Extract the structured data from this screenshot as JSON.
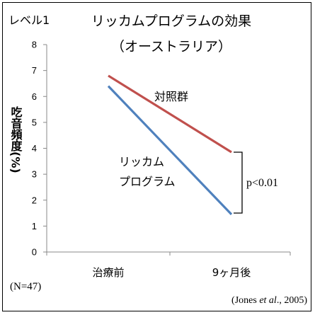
{
  "level_label": "レベル1",
  "chart_data": {
    "type": "line",
    "title": "リッカムプログラムの効果",
    "subtitle": "（オーストラリア）",
    "ylabel": "吃音頻度(%)",
    "categories": [
      "治療前",
      "9ヶ月後"
    ],
    "ylim": [
      0,
      8
    ],
    "yticks": [
      0,
      1,
      2,
      3,
      4,
      5,
      6,
      7,
      8
    ],
    "grid": false,
    "series": [
      {
        "name": "対照群",
        "values": [
          6.8,
          3.85
        ],
        "color": "#c0504d"
      },
      {
        "name_lines": [
          "リッカム",
          "プログラム"
        ],
        "values": [
          6.4,
          1.45
        ],
        "color": "#4f81bd"
      }
    ],
    "annotation": "p<0.01",
    "sample_note": "(N=47)",
    "source_pre": "(Jones ",
    "source_italic": "et al",
    "source_post": "., 2005)"
  }
}
